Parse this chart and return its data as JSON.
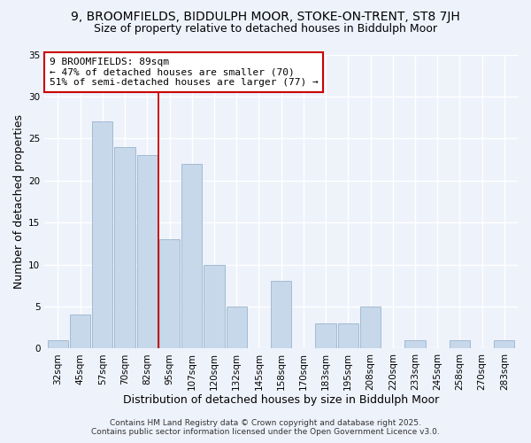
{
  "title1": "9, BROOMFIELDS, BIDDULPH MOOR, STOKE-ON-TRENT, ST8 7JH",
  "title2": "Size of property relative to detached houses in Biddulph Moor",
  "xlabel": "Distribution of detached houses by size in Biddulph Moor",
  "ylabel": "Number of detached properties",
  "categories": [
    "32sqm",
    "45sqm",
    "57sqm",
    "70sqm",
    "82sqm",
    "95sqm",
    "107sqm",
    "120sqm",
    "132sqm",
    "145sqm",
    "158sqm",
    "170sqm",
    "183sqm",
    "195sqm",
    "208sqm",
    "220sqm",
    "233sqm",
    "245sqm",
    "258sqm",
    "270sqm",
    "283sqm"
  ],
  "values": [
    1,
    4,
    27,
    24,
    23,
    13,
    22,
    10,
    5,
    0,
    8,
    0,
    3,
    3,
    5,
    0,
    1,
    0,
    1,
    0,
    1
  ],
  "bar_color": "#c6d8ea",
  "bar_edge_color": "#9ab4cc",
  "vline_x_index": 4.5,
  "vline_color": "#cc0000",
  "ylim": [
    0,
    35
  ],
  "yticks": [
    0,
    5,
    10,
    15,
    20,
    25,
    30,
    35
  ],
  "annotation_title": "9 BROOMFIELDS: 89sqm",
  "annotation_line1": "← 47% of detached houses are smaller (70)",
  "annotation_line2": "51% of semi-detached houses are larger (77) →",
  "footer1": "Contains HM Land Registry data © Crown copyright and database right 2025.",
  "footer2": "Contains public sector information licensed under the Open Government Licence v3.0.",
  "bg_color": "#eef2fb",
  "plot_bg_color": "#eef2fb",
  "grid_color": "#ffffff",
  "title_fontsize": 10,
  "subtitle_fontsize": 9,
  "axis_label_fontsize": 9,
  "tick_fontsize": 7.5,
  "annotation_fontsize": 8,
  "footer_fontsize": 6.5
}
